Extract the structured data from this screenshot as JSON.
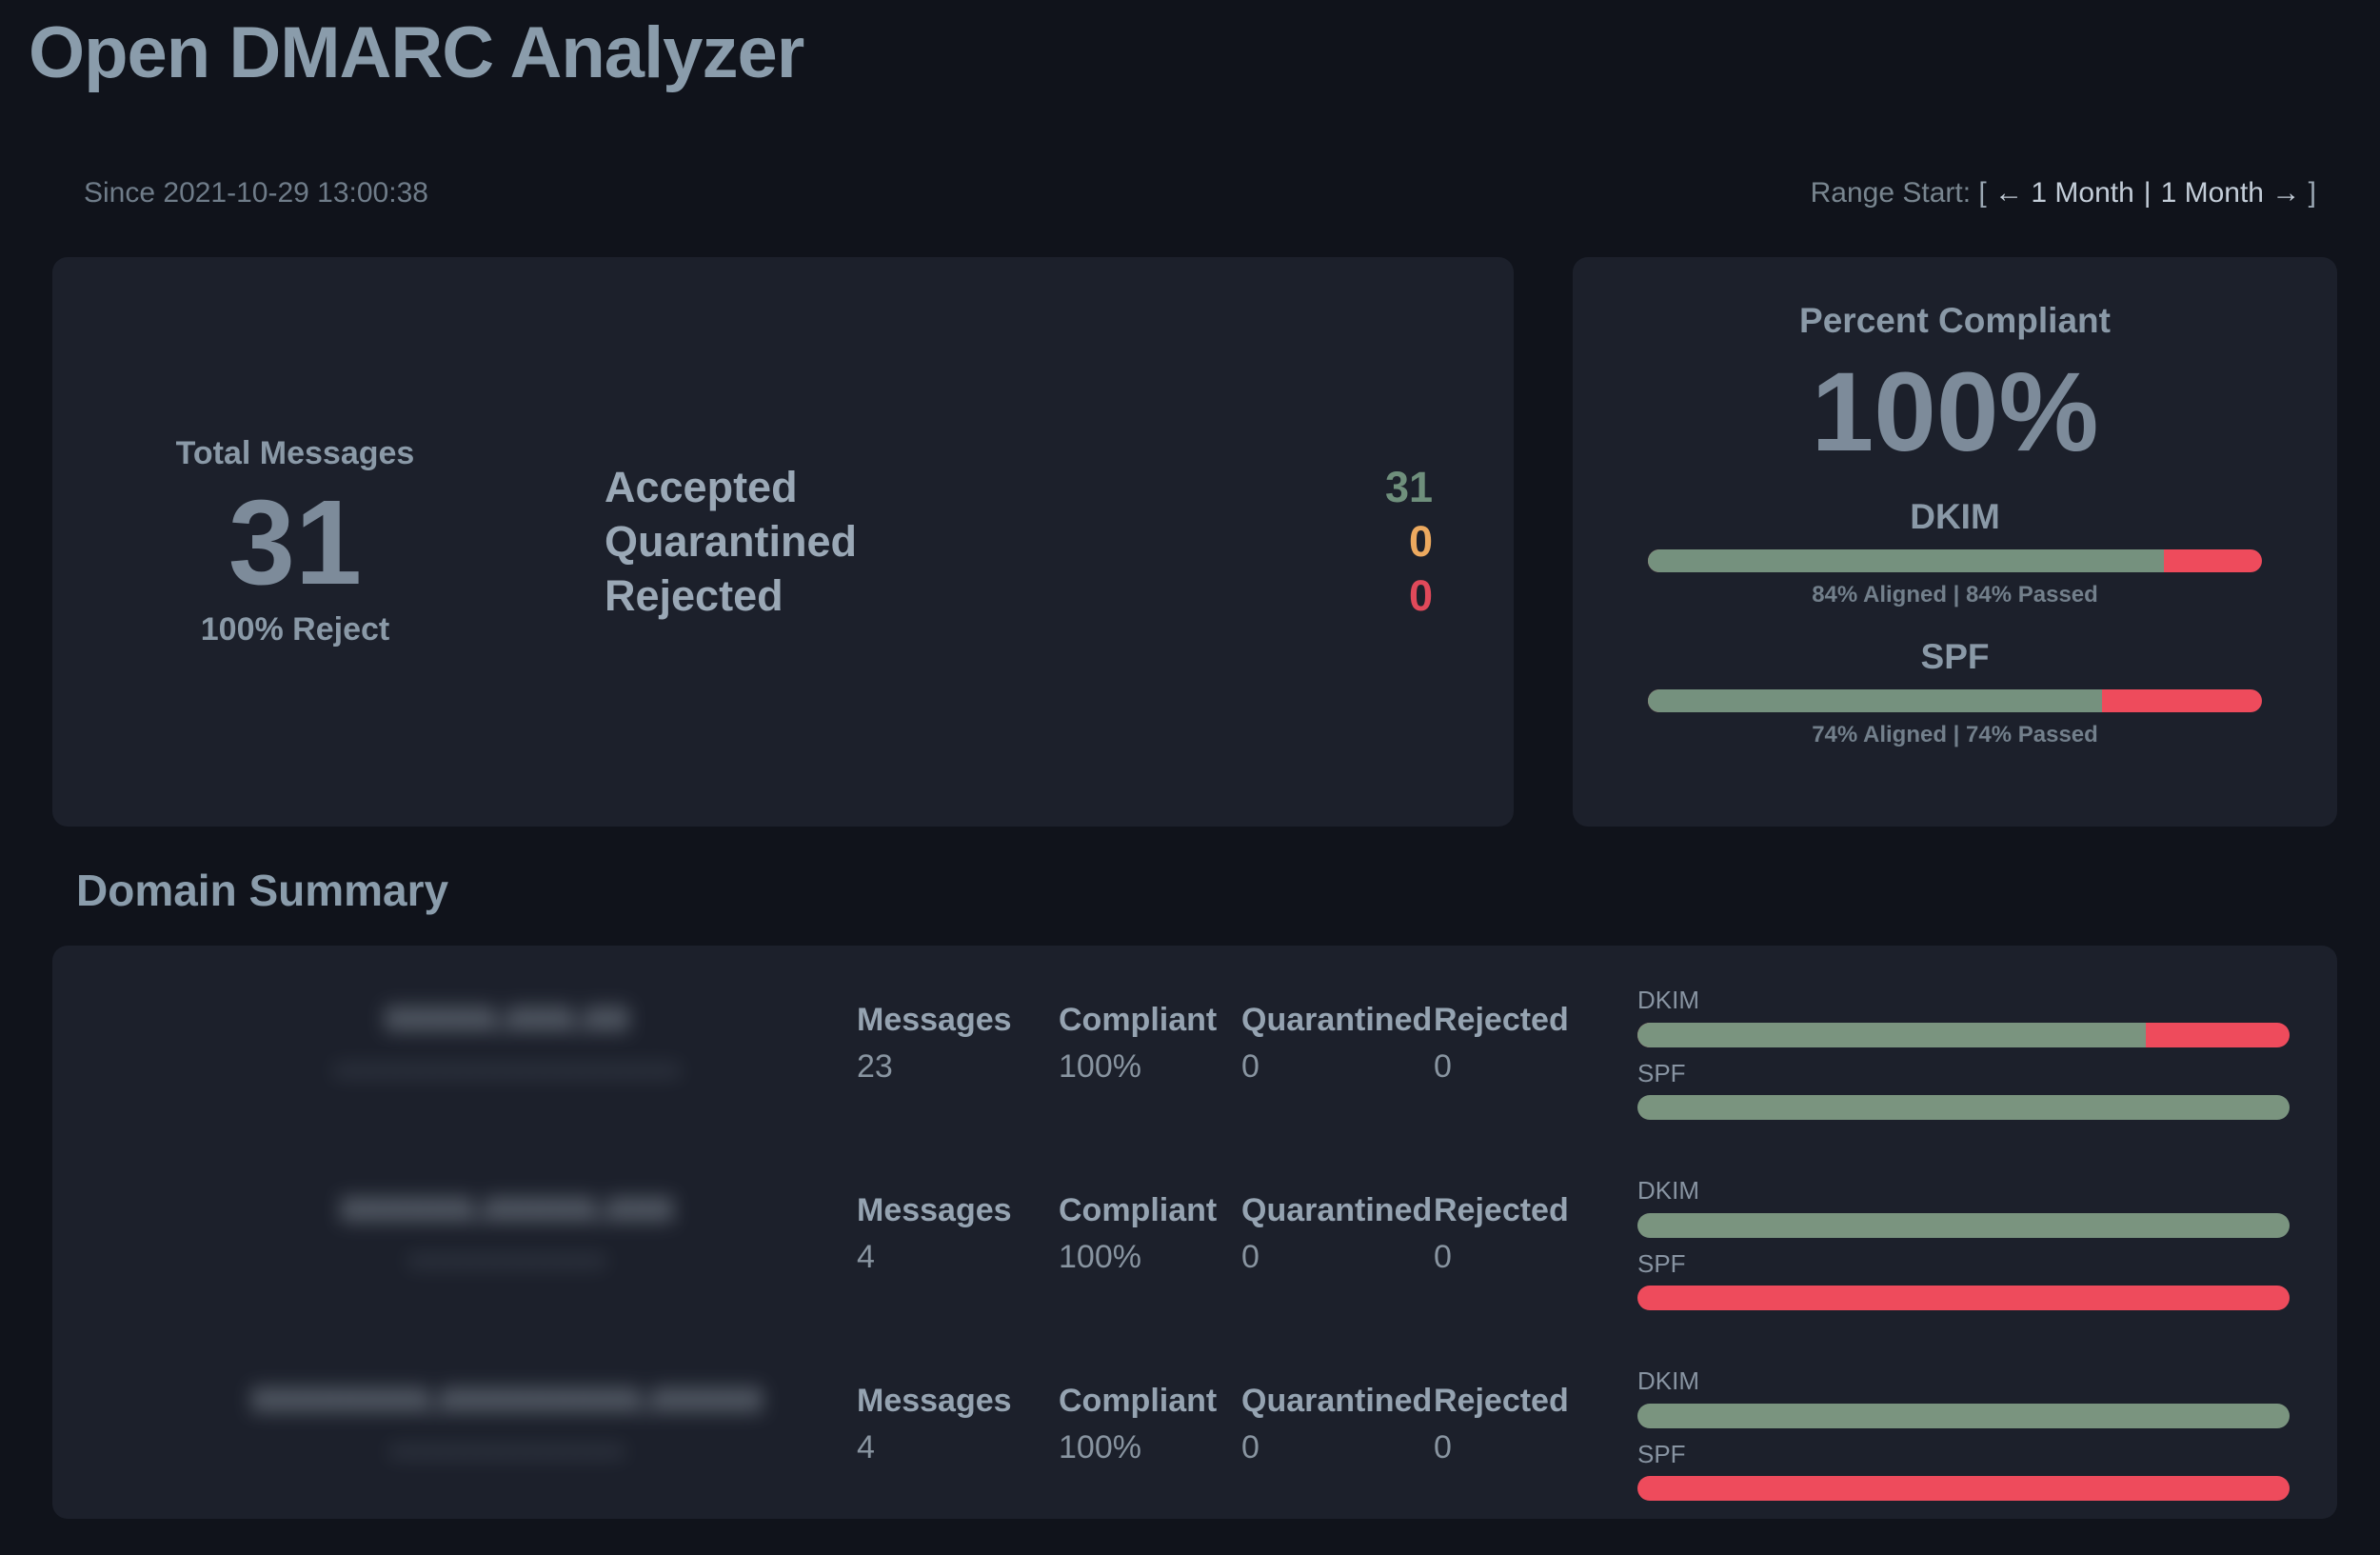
{
  "app": {
    "title": "Open DMARC Analyzer"
  },
  "header": {
    "since": "Since 2021-10-29 13:00:38",
    "range": {
      "prefix": "Range Start: ",
      "open_bracket": "[ ",
      "prev_label": "← 1 Month",
      "separator": "|",
      "next_label": "1 Month →",
      "close_bracket": " ]"
    }
  },
  "totals": {
    "label": "Total Messages",
    "value": "31",
    "policy": "100% Reject",
    "dispositions": [
      {
        "label": "Accepted",
        "value": "31"
      },
      {
        "label": "Quarantined",
        "value": "0"
      },
      {
        "label": "Rejected",
        "value": "0"
      }
    ]
  },
  "compliance": {
    "title": "Percent Compliant",
    "value": "100%",
    "meters": [
      {
        "label": "DKIM",
        "pass_pct": 84,
        "caption": "84% Aligned | 84% Passed"
      },
      {
        "label": "SPF",
        "pass_pct": 74,
        "caption": "74% Aligned | 74% Passed"
      }
    ]
  },
  "domain_summary": {
    "heading": "Domain Summary",
    "col_labels": {
      "messages": "Messages",
      "compliant": "Compliant",
      "quarantined": "Quarantined",
      "rejected": "Rejected",
      "dkim": "DKIM",
      "spf": "SPF"
    },
    "rows": [
      {
        "domain_redacted": true,
        "domain_placeholder": "xxxxx.xxx.xx",
        "domain_sub_placeholder": "xxxxxxxxxxxxxxxxxxxxxxxxxxxx",
        "messages": "23",
        "compliant": "100%",
        "quarantined": "0",
        "rejected": "0",
        "dkim_pass_pct": 78,
        "spf_pass_pct": 100
      },
      {
        "domain_redacted": true,
        "domain_placeholder": "xxxxxx.xxxxx.xxx",
        "domain_sub_placeholder": "xxxxxxxxxxxxxxxx",
        "messages": "4",
        "compliant": "100%",
        "quarantined": "0",
        "rejected": "0",
        "dkim_pass_pct": 100,
        "spf_pass_pct": 0
      },
      {
        "domain_redacted": true,
        "domain_placeholder": "xxxxxxxx.xxxxxxxxx.xxxxx",
        "domain_sub_placeholder": "xxxxxxxxxxxxxxxxxxx",
        "messages": "4",
        "compliant": "100%",
        "quarantined": "0",
        "rejected": "0",
        "dkim_pass_pct": 100,
        "spf_pass_pct": 0
      }
    ]
  },
  "colors": {
    "page_bg": "#10131b",
    "card_bg": "#1c202b",
    "heading": "#8a9cab",
    "pass_green": "#75917e",
    "fail_red": "#ee4b5c",
    "quarantine_orange": "#eca95f",
    "accepted_green": "#6f8f7c",
    "rejected_red": "#e0495a"
  }
}
